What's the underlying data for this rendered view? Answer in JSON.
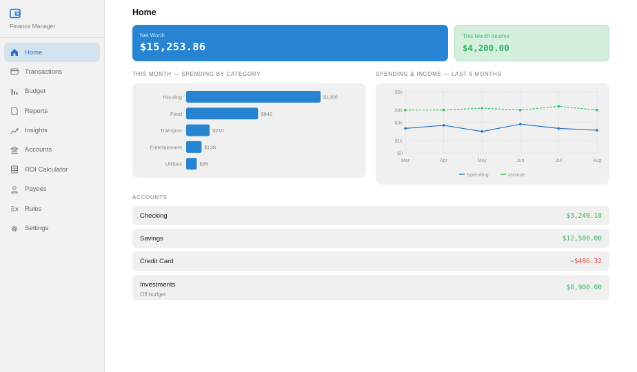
{
  "app": {
    "name": "Finance Manager"
  },
  "sidebar": {
    "items": [
      {
        "label": "Home",
        "icon": "home-icon",
        "active": true
      },
      {
        "label": "Transactions",
        "icon": "credit-card-icon"
      },
      {
        "label": "Budget",
        "icon": "bar-chart-icon"
      },
      {
        "label": "Reports",
        "icon": "document-icon"
      },
      {
        "label": "Insights",
        "icon": "trend-icon"
      },
      {
        "label": "Accounts",
        "icon": "bank-icon"
      },
      {
        "label": "ROI Calculator",
        "icon": "calculator-icon"
      },
      {
        "label": "Payees",
        "icon": "person-icon"
      },
      {
        "label": "Rules",
        "icon": "rules-icon"
      },
      {
        "label": "Settings",
        "icon": "gear-icon"
      }
    ]
  },
  "page": {
    "title": "Home"
  },
  "summary": {
    "net_worth_label": "Net Worth",
    "net_worth": "$15,253.86",
    "income_label": "This Month Income",
    "income": "$4,200.00"
  },
  "sections": {
    "spending_by_category": "This Month — Spending by Category",
    "spending_income": "Spending & Income — Last 6 Months",
    "accounts": "Accounts"
  },
  "chart_data": [
    {
      "type": "bar",
      "orientation": "horizontal",
      "categories": [
        "Housing",
        "Food",
        "Transport",
        "Entertainment",
        "Utilities"
      ],
      "values": [
        1200,
        642,
        210,
        138,
        95
      ],
      "value_labels": [
        "$1200",
        "$642",
        "$210",
        "$138",
        "$95"
      ],
      "color": "#2684d2"
    },
    {
      "type": "line",
      "x": [
        "Mar",
        "Apr",
        "May",
        "Jun",
        "Jul",
        "Aug"
      ],
      "y_ticks": [
        "$0",
        "$1k",
        "$3k",
        "$4k",
        "$5k"
      ],
      "ylim": [
        0,
        5000
      ],
      "grid": true,
      "legend_position": "bottom",
      "series": [
        {
          "name": "Spending",
          "values": [
            2000,
            2250,
            1750,
            2350,
            2000,
            1850
          ],
          "color": "#2176c7",
          "style": "solid"
        },
        {
          "name": "Income",
          "values": [
            3500,
            3500,
            3650,
            3500,
            3800,
            3500
          ],
          "color": "#2fc65a",
          "style": "dashed"
        }
      ]
    }
  ],
  "accounts": [
    {
      "name": "Checking",
      "sub": "",
      "balance": "$3,240.18",
      "kind": "pos"
    },
    {
      "name": "Savings",
      "sub": "",
      "balance": "$12,500.00",
      "kind": "pos"
    },
    {
      "name": "Credit Card",
      "sub": "",
      "balance": "−$486.32",
      "kind": "neg"
    },
    {
      "name": "Investments",
      "sub": "Off budget",
      "balance": "$8,900.00",
      "kind": "pos"
    }
  ]
}
